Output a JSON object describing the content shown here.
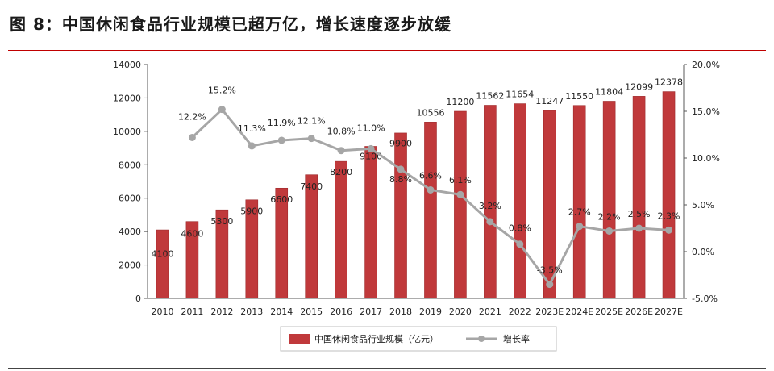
{
  "figure": {
    "title": "图 8：中国休闲食品行业规模已超万亿，增长速度逐步放缓"
  },
  "colors": {
    "bar": "#c0393b",
    "bar_edge": "#9e2a2c",
    "line": "#a6a6a6",
    "accent_rule": "#c00000"
  },
  "chart_data": {
    "type": "bar",
    "categories": [
      "2010",
      "2011",
      "2012",
      "2013",
      "2014",
      "2015",
      "2016",
      "2017",
      "2018",
      "2019",
      "2020",
      "2021",
      "2022",
      "2023E",
      "2024E",
      "2025E",
      "2026E",
      "2027E"
    ],
    "series": [
      {
        "name": "中国休闲食品行业规模（亿元）",
        "type": "bar",
        "axis": "left",
        "values": [
          4100,
          4600,
          5300,
          5900,
          6600,
          7400,
          8200,
          9100,
          9900,
          10556,
          11200,
          11562,
          11654,
          11247,
          11550,
          11804,
          12099,
          12378
        ],
        "labels": [
          "4100",
          "4600",
          "5300",
          "5900",
          "6600",
          "7400",
          "8200",
          "9100",
          "9900",
          "10556",
          "11200",
          "11562",
          "11654",
          "11247",
          "11550",
          "11804",
          "12099",
          "12378"
        ]
      },
      {
        "name": "增长率",
        "type": "line",
        "axis": "right",
        "values": [
          null,
          12.2,
          15.2,
          11.3,
          11.9,
          12.1,
          10.8,
          11.0,
          8.8,
          6.6,
          6.1,
          3.2,
          0.8,
          -3.5,
          2.7,
          2.2,
          2.5,
          2.3
        ],
        "labels": [
          null,
          "12.2%",
          "15.2%",
          "11.3%",
          "11.9%",
          "12.1%",
          "10.8%",
          "11.0%",
          "8.8%",
          "6.6%",
          "6.1%",
          "3.2%",
          "0.8%",
          "-3.5%",
          "2.7%",
          "2.2%",
          "2.5%",
          "2.3%"
        ]
      }
    ],
    "y_left": {
      "min": 0,
      "max": 14000,
      "ticks": [
        "0",
        "2000",
        "4000",
        "6000",
        "8000",
        "10000",
        "12000",
        "14000"
      ]
    },
    "y_right": {
      "min": -5,
      "max": 20,
      "ticks": [
        "-5.0%",
        "0.0%",
        "5.0%",
        "10.0%",
        "15.0%",
        "20.0%"
      ]
    },
    "grid": false,
    "legend": "bottom-center"
  }
}
